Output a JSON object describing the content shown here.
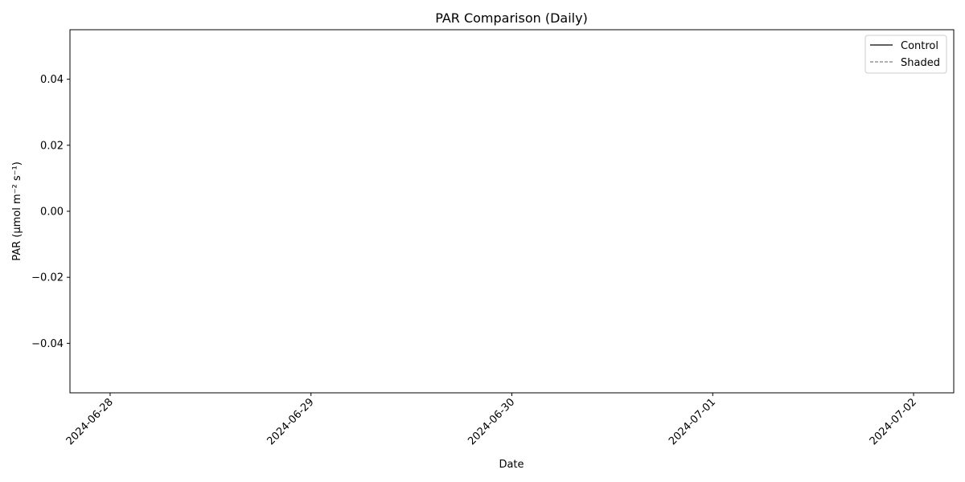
{
  "chart_data": {
    "type": "line",
    "title": "PAR Comparison (Daily)",
    "xlabel": "Date",
    "ylabel": "PAR (µmol m⁻² s⁻¹)",
    "x_ticks": [
      "2024-06-28",
      "2024-06-29",
      "2024-06-30",
      "2024-07-01",
      "2024-07-02"
    ],
    "xlim": [
      "2024-06-27T19:12",
      "2024-07-02T04:48"
    ],
    "y_ticks": [
      -0.04,
      -0.02,
      0.0,
      0.02,
      0.04
    ],
    "y_tick_labels": [
      "−0.04",
      "−0.02",
      "0.00",
      "0.02",
      "0.04"
    ],
    "ylim": [
      -0.055,
      0.055
    ],
    "grid": false,
    "legend_position": "top-right",
    "series": [
      {
        "name": "Control",
        "color": "#000000",
        "dash": "solid",
        "values": []
      },
      {
        "name": "Shaded",
        "color": "#808080",
        "dash": "dashed",
        "values": []
      }
    ]
  }
}
